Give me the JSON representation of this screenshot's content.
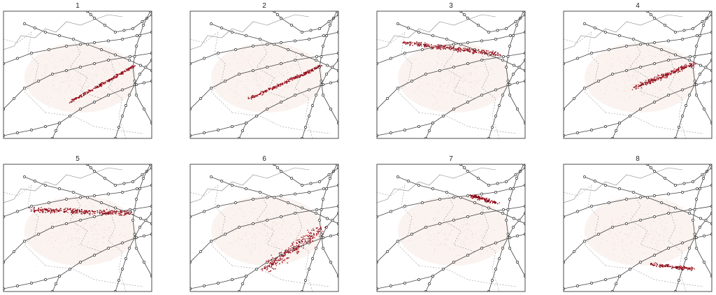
{
  "panels": [
    {
      "title": "1"
    },
    {
      "title": "2"
    },
    {
      "title": "3"
    },
    {
      "title": "4"
    },
    {
      "title": "5"
    },
    {
      "title": "6"
    },
    {
      "title": "7"
    },
    {
      "title": "8"
    }
  ]
}
